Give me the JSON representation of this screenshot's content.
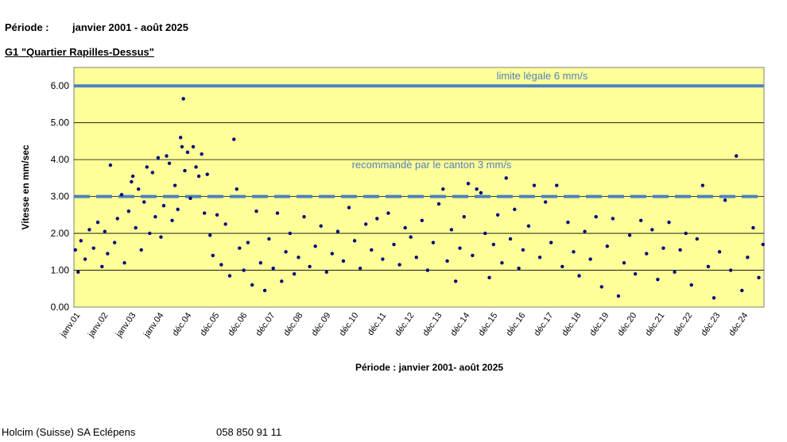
{
  "header": {
    "period_label": "Période :",
    "period_value": "janvier 2001 - août 2025",
    "station": "G1 \"Quartier Rapilles-Dessus\""
  },
  "footer": {
    "company": "Holcim (Suisse) SA Eclépens",
    "phone": "058 850 91 11"
  },
  "chart_data": {
    "type": "scatter",
    "ylabel": "Vitesse en mm/sec",
    "xlabel": "Période : janvier 2001- août 2025",
    "ylim": [
      0,
      6.5
    ],
    "yticks": [
      "0.00",
      "1.00",
      "2.00",
      "3.00",
      "4.00",
      "5.00",
      "6.00"
    ],
    "xlim": [
      "2001-01",
      "2025-08"
    ],
    "xticks": [
      "janv.01",
      "janv.02",
      "janv.03",
      "janv.04",
      "déc.04",
      "déc.05",
      "déc.06",
      "déc.07",
      "déc.08",
      "déc.09",
      "déc.10",
      "déc.11",
      "déc.12",
      "déc.13",
      "déc.14",
      "déc.15",
      "déc.16",
      "déc.17",
      "déc.18",
      "déc.19",
      "déc.20",
      "déc.21",
      "déc.22",
      "déc.23",
      "déc.24"
    ],
    "grid": true,
    "background": "#ffff99",
    "point_color": "#000080",
    "reference_lines": [
      {
        "label": "limite légale 6 mm/s",
        "value": 6.0,
        "style": "solid",
        "color": "#4f81bd"
      },
      {
        "label": "recommandè par le canton 3 mm/s",
        "value": 3.0,
        "style": "dashed",
        "color": "#4f81bd"
      }
    ],
    "series": [
      {
        "values": [
          {
            "x": 2001.05,
            "y": 1.55
          },
          {
            "x": 2001.15,
            "y": 0.95
          },
          {
            "x": 2001.25,
            "y": 1.8
          },
          {
            "x": 2001.4,
            "y": 1.3
          },
          {
            "x": 2001.55,
            "y": 2.1
          },
          {
            "x": 2001.7,
            "y": 1.6
          },
          {
            "x": 2001.85,
            "y": 2.3
          },
          {
            "x": 2002.0,
            "y": 1.1
          },
          {
            "x": 2002.1,
            "y": 2.05
          },
          {
            "x": 2002.2,
            "y": 1.45
          },
          {
            "x": 2002.3,
            "y": 3.85
          },
          {
            "x": 2002.45,
            "y": 1.75
          },
          {
            "x": 2002.55,
            "y": 2.4
          },
          {
            "x": 2002.7,
            "y": 3.05
          },
          {
            "x": 2002.8,
            "y": 1.2
          },
          {
            "x": 2002.95,
            "y": 2.6
          },
          {
            "x": 2003.05,
            "y": 3.4
          },
          {
            "x": 2003.1,
            "y": 3.55
          },
          {
            "x": 2003.2,
            "y": 2.15
          },
          {
            "x": 2003.3,
            "y": 3.2
          },
          {
            "x": 2003.4,
            "y": 1.55
          },
          {
            "x": 2003.5,
            "y": 2.85
          },
          {
            "x": 2003.6,
            "y": 3.8
          },
          {
            "x": 2003.7,
            "y": 2.0
          },
          {
            "x": 2003.8,
            "y": 3.65
          },
          {
            "x": 2003.9,
            "y": 2.45
          },
          {
            "x": 2004.0,
            "y": 4.05
          },
          {
            "x": 2004.1,
            "y": 1.9
          },
          {
            "x": 2004.2,
            "y": 2.75
          },
          {
            "x": 2004.3,
            "y": 4.1
          },
          {
            "x": 2004.4,
            "y": 3.9
          },
          {
            "x": 2004.5,
            "y": 2.35
          },
          {
            "x": 2004.6,
            "y": 3.3
          },
          {
            "x": 2004.7,
            "y": 2.65
          },
          {
            "x": 2004.8,
            "y": 4.6
          },
          {
            "x": 2004.85,
            "y": 4.35
          },
          {
            "x": 2004.9,
            "y": 5.65
          },
          {
            "x": 2004.95,
            "y": 3.7
          },
          {
            "x": 2005.05,
            "y": 4.2
          },
          {
            "x": 2005.15,
            "y": 2.95
          },
          {
            "x": 2005.25,
            "y": 4.35
          },
          {
            "x": 2005.35,
            "y": 3.8
          },
          {
            "x": 2005.45,
            "y": 3.55
          },
          {
            "x": 2005.55,
            "y": 4.15
          },
          {
            "x": 2005.65,
            "y": 2.55
          },
          {
            "x": 2005.75,
            "y": 3.6
          },
          {
            "x": 2005.85,
            "y": 1.95
          },
          {
            "x": 2005.95,
            "y": 1.4
          },
          {
            "x": 2006.1,
            "y": 2.5
          },
          {
            "x": 2006.25,
            "y": 1.15
          },
          {
            "x": 2006.4,
            "y": 2.25
          },
          {
            "x": 2006.55,
            "y": 0.85
          },
          {
            "x": 2006.7,
            "y": 4.55
          },
          {
            "x": 2006.8,
            "y": 3.2
          },
          {
            "x": 2006.9,
            "y": 1.6
          },
          {
            "x": 2007.05,
            "y": 1.0
          },
          {
            "x": 2007.2,
            "y": 1.75
          },
          {
            "x": 2007.35,
            "y": 0.6
          },
          {
            "x": 2007.5,
            "y": 2.6
          },
          {
            "x": 2007.65,
            "y": 1.2
          },
          {
            "x": 2007.8,
            "y": 0.45
          },
          {
            "x": 2007.95,
            "y": 1.85
          },
          {
            "x": 2008.1,
            "y": 1.05
          },
          {
            "x": 2008.25,
            "y": 2.55
          },
          {
            "x": 2008.4,
            "y": 0.7
          },
          {
            "x": 2008.55,
            "y": 1.5
          },
          {
            "x": 2008.7,
            "y": 2.0
          },
          {
            "x": 2008.85,
            "y": 0.9
          },
          {
            "x": 2009.0,
            "y": 1.35
          },
          {
            "x": 2009.2,
            "y": 2.45
          },
          {
            "x": 2009.4,
            "y": 1.1
          },
          {
            "x": 2009.6,
            "y": 1.65
          },
          {
            "x": 2009.8,
            "y": 2.2
          },
          {
            "x": 2010.0,
            "y": 0.95
          },
          {
            "x": 2010.2,
            "y": 1.45
          },
          {
            "x": 2010.4,
            "y": 2.05
          },
          {
            "x": 2010.6,
            "y": 1.25
          },
          {
            "x": 2010.8,
            "y": 2.7
          },
          {
            "x": 2011.0,
            "y": 1.8
          },
          {
            "x": 2011.2,
            "y": 1.05
          },
          {
            "x": 2011.4,
            "y": 2.25
          },
          {
            "x": 2011.6,
            "y": 1.55
          },
          {
            "x": 2011.8,
            "y": 2.4
          },
          {
            "x": 2012.0,
            "y": 1.3
          },
          {
            "x": 2012.2,
            "y": 2.55
          },
          {
            "x": 2012.4,
            "y": 1.7
          },
          {
            "x": 2012.6,
            "y": 1.15
          },
          {
            "x": 2012.8,
            "y": 2.15
          },
          {
            "x": 2013.0,
            "y": 1.9
          },
          {
            "x": 2013.2,
            "y": 1.35
          },
          {
            "x": 2013.4,
            "y": 2.35
          },
          {
            "x": 2013.6,
            "y": 1.0
          },
          {
            "x": 2013.8,
            "y": 1.75
          },
          {
            "x": 2014.0,
            "y": 2.8
          },
          {
            "x": 2014.15,
            "y": 3.2
          },
          {
            "x": 2014.3,
            "y": 1.25
          },
          {
            "x": 2014.45,
            "y": 2.1
          },
          {
            "x": 2014.6,
            "y": 0.7
          },
          {
            "x": 2014.75,
            "y": 1.6
          },
          {
            "x": 2014.9,
            "y": 2.45
          },
          {
            "x": 2015.05,
            "y": 3.35
          },
          {
            "x": 2015.2,
            "y": 1.4
          },
          {
            "x": 2015.35,
            "y": 3.2
          },
          {
            "x": 2015.5,
            "y": 3.1
          },
          {
            "x": 2015.65,
            "y": 2.0
          },
          {
            "x": 2015.8,
            "y": 0.8
          },
          {
            "x": 2015.95,
            "y": 1.7
          },
          {
            "x": 2016.1,
            "y": 2.5
          },
          {
            "x": 2016.25,
            "y": 1.2
          },
          {
            "x": 2016.4,
            "y": 3.5
          },
          {
            "x": 2016.55,
            "y": 1.85
          },
          {
            "x": 2016.7,
            "y": 2.65
          },
          {
            "x": 2016.85,
            "y": 1.05
          },
          {
            "x": 2017.0,
            "y": 1.55
          },
          {
            "x": 2017.2,
            "y": 2.2
          },
          {
            "x": 2017.4,
            "y": 3.3
          },
          {
            "x": 2017.6,
            "y": 1.35
          },
          {
            "x": 2017.8,
            "y": 2.85
          },
          {
            "x": 2018.0,
            "y": 1.75
          },
          {
            "x": 2018.2,
            "y": 3.3
          },
          {
            "x": 2018.4,
            "y": 1.1
          },
          {
            "x": 2018.6,
            "y": 2.3
          },
          {
            "x": 2018.8,
            "y": 1.5
          },
          {
            "x": 2019.0,
            "y": 0.85
          },
          {
            "x": 2019.2,
            "y": 2.05
          },
          {
            "x": 2019.4,
            "y": 1.3
          },
          {
            "x": 2019.6,
            "y": 2.45
          },
          {
            "x": 2019.8,
            "y": 0.55
          },
          {
            "x": 2020.0,
            "y": 1.65
          },
          {
            "x": 2020.2,
            "y": 2.4
          },
          {
            "x": 2020.4,
            "y": 0.3
          },
          {
            "x": 2020.6,
            "y": 1.2
          },
          {
            "x": 2020.8,
            "y": 1.95
          },
          {
            "x": 2021.0,
            "y": 0.9
          },
          {
            "x": 2021.2,
            "y": 2.35
          },
          {
            "x": 2021.4,
            "y": 1.45
          },
          {
            "x": 2021.6,
            "y": 2.1
          },
          {
            "x": 2021.8,
            "y": 0.75
          },
          {
            "x": 2022.0,
            "y": 1.6
          },
          {
            "x": 2022.2,
            "y": 2.3
          },
          {
            "x": 2022.4,
            "y": 0.95
          },
          {
            "x": 2022.6,
            "y": 1.55
          },
          {
            "x": 2022.8,
            "y": 2.0
          },
          {
            "x": 2023.0,
            "y": 0.6
          },
          {
            "x": 2023.2,
            "y": 1.85
          },
          {
            "x": 2023.4,
            "y": 3.3
          },
          {
            "x": 2023.6,
            "y": 1.1
          },
          {
            "x": 2023.8,
            "y": 0.25
          },
          {
            "x": 2024.0,
            "y": 1.5
          },
          {
            "x": 2024.2,
            "y": 2.9
          },
          {
            "x": 2024.4,
            "y": 1.0
          },
          {
            "x": 2024.6,
            "y": 4.1
          },
          {
            "x": 2024.8,
            "y": 0.45
          },
          {
            "x": 2025.0,
            "y": 1.35
          },
          {
            "x": 2025.2,
            "y": 2.15
          },
          {
            "x": 2025.4,
            "y": 0.8
          },
          {
            "x": 2025.55,
            "y": 1.7
          }
        ]
      }
    ]
  }
}
